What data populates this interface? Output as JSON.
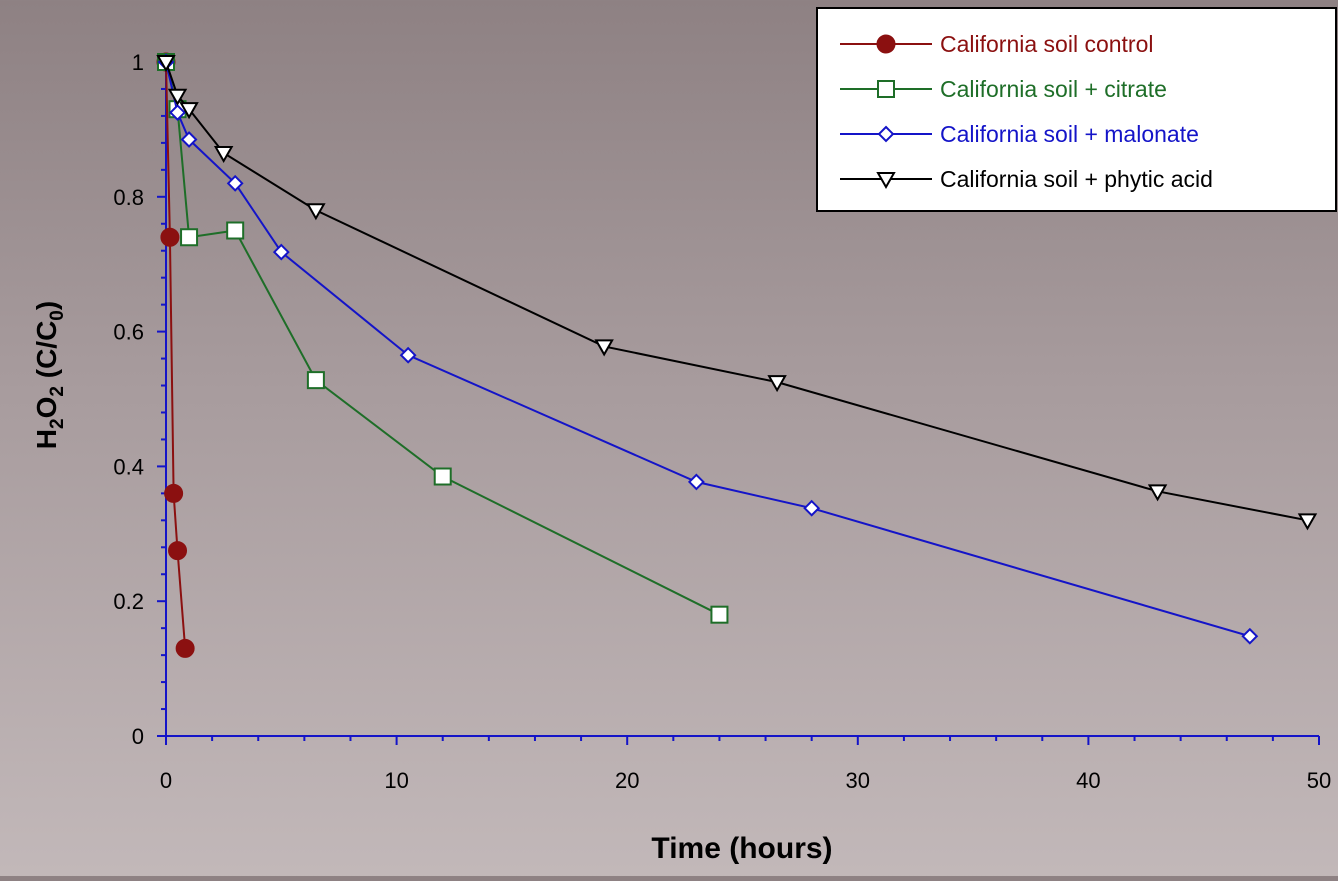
{
  "chart_data": {
    "type": "line",
    "title": "",
    "xlabel": "Time (hours)",
    "ylabel": {
      "parts": [
        {
          "t": "H",
          "sub": false
        },
        {
          "t": "2",
          "sub": true
        },
        {
          "t": "O",
          "sub": false
        },
        {
          "t": "2",
          "sub": true
        },
        {
          "t": " (C/C",
          "sub": false
        },
        {
          "t": "0",
          "sub": true
        },
        {
          "t": ")",
          "sub": false
        }
      ]
    },
    "xlim": [
      0,
      50
    ],
    "ylim": [
      0,
      1
    ],
    "x_ticks": [
      "0",
      "10",
      "20",
      "30",
      "40",
      "50"
    ],
    "y_ticks": [
      "0",
      "0.2",
      "0.4",
      "0.6",
      "0.8",
      "1"
    ],
    "legend_position": "top-right",
    "axis_color": "#1414c8",
    "series": [
      {
        "name": "California soil control",
        "color": "#8b1010",
        "marker": "filled-circle",
        "x": [
          0,
          0.17,
          0.33,
          0.5,
          0.83
        ],
        "y": [
          1.0,
          0.74,
          0.36,
          0.275,
          0.13
        ]
      },
      {
        "name": "California soil + citrate",
        "color": "#1e6e28",
        "marker": "open-square",
        "x": [
          0,
          0.5,
          1,
          3,
          6.5,
          12,
          24
        ],
        "y": [
          1.0,
          0.93,
          0.74,
          0.75,
          0.528,
          0.385,
          0.18
        ]
      },
      {
        "name": "California soil + malonate",
        "color": "#1414c8",
        "marker": "open-diamond",
        "x": [
          0,
          0.5,
          1,
          3,
          5,
          10.5,
          23,
          28,
          47
        ],
        "y": [
          1.0,
          0.925,
          0.885,
          0.82,
          0.718,
          0.565,
          0.377,
          0.338,
          0.148
        ]
      },
      {
        "name": "California soil + phytic acid",
        "color": "#000000",
        "marker": "open-triangle-down",
        "x": [
          0,
          0.5,
          1,
          2.5,
          6.5,
          19,
          26.5,
          43,
          49.5
        ],
        "y": [
          1.0,
          0.95,
          0.93,
          0.865,
          0.78,
          0.578,
          0.525,
          0.363,
          0.32
        ]
      }
    ]
  }
}
